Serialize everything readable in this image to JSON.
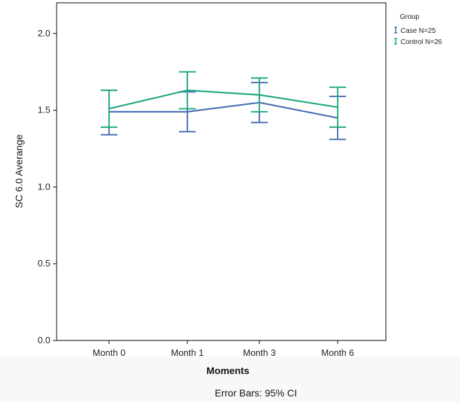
{
  "chart_data": {
    "type": "line",
    "title": "",
    "xlabel": "Moments",
    "ylabel": "SC 6.0 Averange",
    "footnote": "Error Bars: 95% CI",
    "categories": [
      "Month 0",
      "Month 1",
      "Month 3",
      "Month 6"
    ],
    "yticks": [
      "0.0",
      "0.5",
      "1.0",
      "1.5",
      "2.0"
    ],
    "ylim": [
      0,
      2.2
    ],
    "grid": false,
    "legend": {
      "title": "Group",
      "placement": "right"
    },
    "series": [
      {
        "name": "Case N=25",
        "color": "#4a6fb5",
        "values": [
          1.49,
          1.49,
          1.55,
          1.45
        ],
        "ci_low": [
          1.34,
          1.36,
          1.42,
          1.31
        ],
        "ci_high": [
          1.63,
          1.62,
          1.68,
          1.59
        ]
      },
      {
        "name": "Control N=26",
        "color": "#1fa882",
        "values": [
          1.51,
          1.63,
          1.6,
          1.52
        ],
        "ci_low": [
          1.39,
          1.51,
          1.49,
          1.39
        ],
        "ci_high": [
          1.63,
          1.75,
          1.71,
          1.65
        ]
      }
    ]
  }
}
